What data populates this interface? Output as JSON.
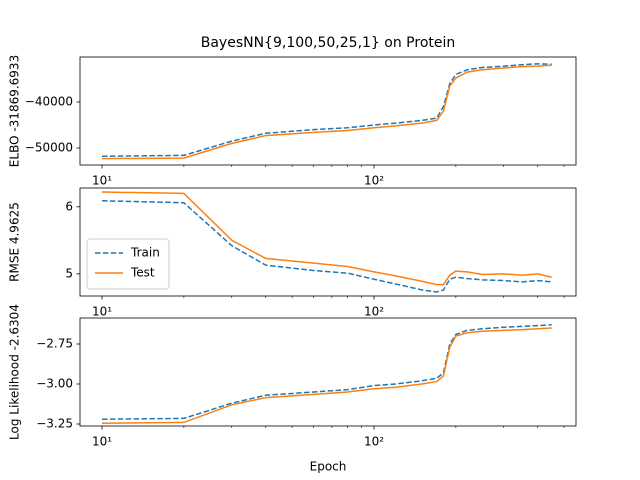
{
  "chart_data": [
    {
      "type": "line",
      "title": "BayesNN{9,100,50,25,1} on Protein",
      "ylabel": "ELBO -31869.6933",
      "xscale": "log",
      "x": [
        10,
        20,
        30,
        40,
        60,
        80,
        100,
        120,
        150,
        170,
        180,
        190,
        200,
        220,
        250,
        300,
        350,
        400,
        450
      ],
      "series": [
        {
          "name": "Train",
          "color": "#1f77b4",
          "linestyle": "dashed",
          "values": [
            -51800,
            -51600,
            -48500,
            -46800,
            -46000,
            -45600,
            -45000,
            -44600,
            -44000,
            -43500,
            -41000,
            -36000,
            -34000,
            -33000,
            -32500,
            -32200,
            -31900,
            -31700,
            -31800
          ]
        },
        {
          "name": "Test",
          "color": "#ff7f0e",
          "linestyle": "solid",
          "values": [
            -52300,
            -52200,
            -49000,
            -47300,
            -46600,
            -46200,
            -45600,
            -45200,
            -44600,
            -44000,
            -42000,
            -36500,
            -34800,
            -33500,
            -33000,
            -32600,
            -32300,
            -32200,
            -32000
          ]
        }
      ],
      "xlim": [
        8.3,
        553
      ],
      "xticks": [
        {
          "value": 10,
          "label": "10¹"
        },
        {
          "value": 100,
          "label": "10²"
        }
      ],
      "xminorticks": [
        20,
        30,
        40,
        50,
        60,
        70,
        80,
        90,
        200,
        300,
        400,
        500
      ],
      "ylim": [
        -53696,
        -30217
      ],
      "yticks": [
        {
          "value": -50000,
          "label": "−50000"
        },
        {
          "value": -40000,
          "label": "−40000"
        }
      ]
    },
    {
      "type": "line",
      "ylabel": "RMSE 4.9625",
      "xscale": "log",
      "legend": "lower left",
      "x": [
        10,
        20,
        30,
        40,
        60,
        80,
        100,
        120,
        150,
        170,
        180,
        190,
        200,
        220,
        250,
        300,
        350,
        400,
        450
      ],
      "series": [
        {
          "name": "Train",
          "color": "#1f77b4",
          "linestyle": "dashed",
          "values": [
            6.09,
            6.06,
            5.42,
            5.13,
            5.05,
            5.01,
            4.92,
            4.85,
            4.76,
            4.73,
            4.76,
            4.92,
            4.95,
            4.93,
            4.91,
            4.9,
            4.88,
            4.9,
            4.88
          ]
        },
        {
          "name": "Test",
          "color": "#ff7f0e",
          "linestyle": "solid",
          "values": [
            6.22,
            6.2,
            5.5,
            5.23,
            5.16,
            5.11,
            5.03,
            4.97,
            4.89,
            4.84,
            4.84,
            4.98,
            5.04,
            5.03,
            4.99,
            5.0,
            4.98,
            5.0,
            4.95
          ]
        }
      ],
      "xlim": [
        8.3,
        553
      ],
      "xticks": [
        {
          "value": 10,
          "label": "10¹"
        },
        {
          "value": 100,
          "label": "10²"
        }
      ],
      "xminorticks": [
        20,
        30,
        40,
        50,
        60,
        70,
        80,
        90,
        200,
        300,
        400,
        500
      ],
      "ylim": [
        4.67,
        6.28
      ],
      "yticks": [
        5,
        6
      ]
    },
    {
      "type": "line",
      "ylabel": "Log Likelihood -2.6304",
      "xlabel": "Epoch",
      "xscale": "log",
      "x": [
        10,
        20,
        30,
        40,
        60,
        80,
        100,
        120,
        150,
        170,
        180,
        190,
        200,
        220,
        250,
        300,
        350,
        400,
        450
      ],
      "series": [
        {
          "name": "Train",
          "color": "#1f77b4",
          "linestyle": "dashed",
          "values": [
            -3.22,
            -3.215,
            -3.12,
            -3.07,
            -3.05,
            -3.035,
            -3.01,
            -3.0,
            -2.98,
            -2.965,
            -2.93,
            -2.75,
            -2.69,
            -2.665,
            -2.655,
            -2.645,
            -2.64,
            -2.635,
            -2.63
          ]
        },
        {
          "name": "Test",
          "color": "#ff7f0e",
          "linestyle": "solid",
          "values": [
            -3.245,
            -3.24,
            -3.13,
            -3.085,
            -3.065,
            -3.05,
            -3.03,
            -3.02,
            -3.0,
            -2.985,
            -2.95,
            -2.77,
            -2.7,
            -2.68,
            -2.67,
            -2.665,
            -2.66,
            -2.655,
            -2.65
          ]
        }
      ],
      "xlim": [
        8.3,
        553
      ],
      "xticks": [
        {
          "value": 10,
          "label": "10¹"
        },
        {
          "value": 100,
          "label": "10²"
        }
      ],
      "xminorticks": [
        20,
        30,
        40,
        50,
        60,
        70,
        80,
        90,
        200,
        300,
        400,
        500
      ],
      "ylim": [
        -3.2625,
        -2.5875
      ],
      "yticks": [
        {
          "value": -3.25,
          "label": "−3.25"
        },
        {
          "value": -3.0,
          "label": "−3.00"
        },
        {
          "value": -2.75,
          "label": "−2.75"
        }
      ]
    }
  ]
}
